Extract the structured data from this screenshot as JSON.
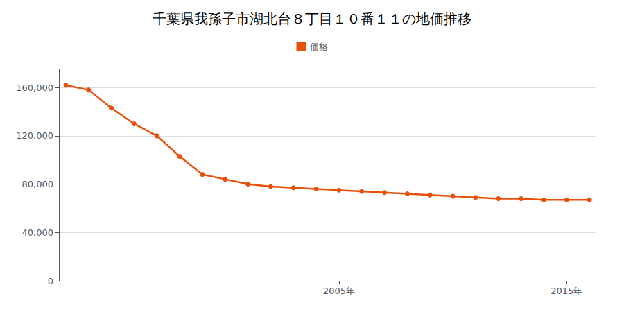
{
  "chart_data": {
    "type": "line",
    "title": "千葉県我孫子市湖北台８丁目１０番１１の地価推移",
    "x": [
      1993,
      1994,
      1995,
      1996,
      1997,
      1998,
      1999,
      2000,
      2001,
      2002,
      2003,
      2004,
      2005,
      2006,
      2007,
      2008,
      2009,
      2010,
      2011,
      2012,
      2013,
      2014,
      2015,
      2016
    ],
    "series": [
      {
        "name": "価格",
        "color": "#e8500a",
        "marker": "circle",
        "values": [
          162000,
          158000,
          143000,
          130000,
          120000,
          103000,
          88000,
          84000,
          80000,
          78000,
          77000,
          76000,
          75000,
          74000,
          73000,
          72000,
          71000,
          70000,
          69000,
          68000,
          68000,
          67000,
          67000,
          67000
        ]
      }
    ],
    "xlim": [
      1992.7,
      2016.3
    ],
    "xticks": [
      {
        "value": 2005,
        "label": "2005年"
      },
      {
        "value": 2015,
        "label": "2015年"
      }
    ],
    "ylim": [
      0,
      175000
    ],
    "yticks": [
      0,
      {
        "value": 40000,
        "label": "40,000"
      },
      {
        "value": 80000,
        "label": "80,000"
      },
      {
        "value": 120000,
        "label": "120,000"
      },
      {
        "value": 160000,
        "label": "160,000"
      }
    ],
    "grid": true,
    "legend": "top"
  }
}
